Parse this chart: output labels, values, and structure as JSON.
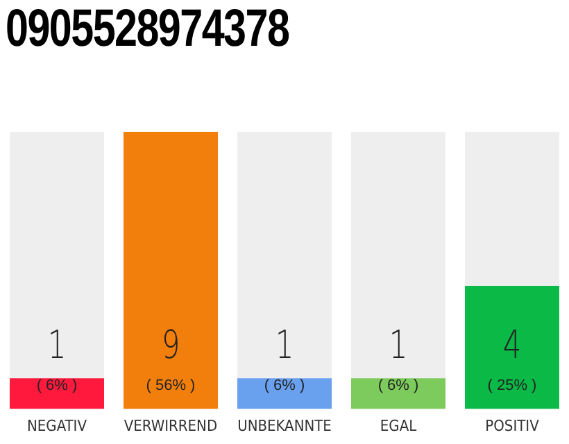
{
  "chart_data": {
    "type": "bar",
    "title": "0905528974378",
    "categories": [
      "NEGATIV",
      "VERWIRREND",
      "UNBEKANNTE",
      "EGAL",
      "POSITIV"
    ],
    "values": [
      1,
      9,
      1,
      1,
      4
    ],
    "colors": [
      "#ff1a3d",
      "#f27f0c",
      "#6aa1ef",
      "#7ccb5c",
      "#0ab946"
    ],
    "data_labels": true,
    "annotations": [
      "( 6% )",
      "( 56% )",
      "( 6% )",
      "( 6% )",
      "( 25% )"
    ],
    "ylim": [
      0,
      9
    ],
    "tick_labels": "x",
    "grid": false,
    "legend": false
  }
}
